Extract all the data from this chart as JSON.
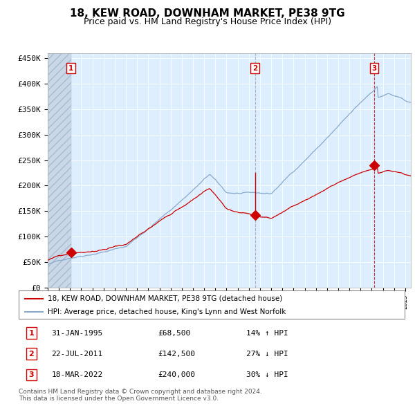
{
  "title": "18, KEW ROAD, DOWNHAM MARKET, PE38 9TG",
  "subtitle": "Price paid vs. HM Land Registry's House Price Index (HPI)",
  "ylim": [
    0,
    460000
  ],
  "yticks": [
    0,
    50000,
    100000,
    150000,
    200000,
    250000,
    300000,
    350000,
    400000,
    450000
  ],
  "ytick_labels": [
    "£0",
    "£50K",
    "£100K",
    "£150K",
    "£200K",
    "£250K",
    "£300K",
    "£350K",
    "£400K",
    "£450K"
  ],
  "xlim_start": 1993.0,
  "xlim_end": 2025.5,
  "sale_dates": [
    1995.08,
    2011.55,
    2022.21
  ],
  "sale_prices": [
    68500,
    142500,
    240000
  ],
  "sale_labels": [
    "1",
    "2",
    "3"
  ],
  "sale_date_labels": [
    "31-JAN-1995",
    "22-JUL-2011",
    "18-MAR-2022"
  ],
  "sale_price_labels": [
    "£68,500",
    "£142,500",
    "£240,000"
  ],
  "sale_hpi_labels": [
    "14% ↑ HPI",
    "27% ↓ HPI",
    "30% ↓ HPI"
  ],
  "price_line_color": "#cc0000",
  "hpi_line_color": "#88aacc",
  "background_color": "#ddeeff",
  "legend_border_color": "#888888",
  "sale_box_color": "#cc0000",
  "vline_color_dashed_grey": "#999999",
  "vline_color_red": "#cc0000",
  "footer_text": "Contains HM Land Registry data © Crown copyright and database right 2024.\nThis data is licensed under the Open Government Licence v3.0.",
  "legend_label_red": "18, KEW ROAD, DOWNHAM MARKET, PE38 9TG (detached house)",
  "legend_label_blue": "HPI: Average price, detached house, King's Lynn and West Norfolk",
  "title_fontsize": 11,
  "subtitle_fontsize": 9,
  "tick_fontsize": 8
}
